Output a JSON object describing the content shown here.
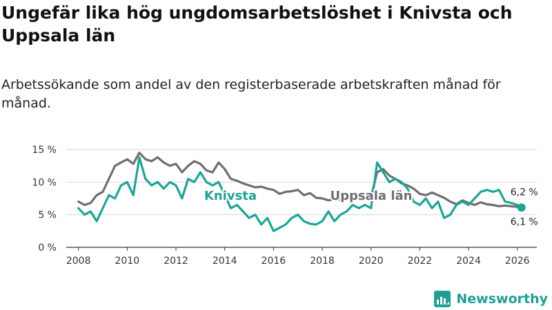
{
  "title": "Ungefär lika hög ungdomsarbetslöshet i Knivsta och Uppsala län",
  "subtitle": "Arbetssökande som andel av den registerbaserade arbetskraften månad för månad.",
  "brand": {
    "name": "Newsworthy"
  },
  "colors": {
    "knivsta": "#1fa396",
    "uppsala": "#6e6e72",
    "grid": "#d6d6d6",
    "axis": "#333333"
  },
  "chart_data": {
    "type": "line",
    "title": "Ungefär lika hög ungdomsarbetslöshet i Knivsta och Uppsala län",
    "xlabel": "",
    "ylabel": "",
    "xlim": [
      2007.5,
      2026.8
    ],
    "ylim": [
      0,
      15
    ],
    "y_ticks": [
      0,
      5,
      10,
      15
    ],
    "y_tick_labels": [
      "0 %",
      "5 %",
      "10 %",
      "15 %"
    ],
    "x_ticks": [
      2008,
      2010,
      2012,
      2014,
      2016,
      2018,
      2020,
      2022,
      2024,
      2026
    ],
    "x_tick_labels": [
      "2008",
      "2010",
      "2012",
      "2014",
      "2016",
      "2018",
      "2020",
      "2022",
      "2024",
      "2026"
    ],
    "grid": true,
    "series": [
      {
        "name": "Uppsala län",
        "label_text": "Uppsala län",
        "end_label": "6,2 %",
        "x": [
          2008.0,
          2008.25,
          2008.5,
          2008.75,
          2009.0,
          2009.25,
          2009.5,
          2009.75,
          2010.0,
          2010.25,
          2010.5,
          2010.75,
          2011.0,
          2011.25,
          2011.5,
          2011.75,
          2012.0,
          2012.25,
          2012.5,
          2012.75,
          2013.0,
          2013.25,
          2013.5,
          2013.75,
          2014.0,
          2014.25,
          2014.5,
          2014.75,
          2015.0,
          2015.25,
          2015.5,
          2015.75,
          2016.0,
          2016.25,
          2016.5,
          2016.75,
          2017.0,
          2017.25,
          2017.5,
          2017.75,
          2018.0,
          2018.25,
          2018.5,
          2018.75,
          2019.0,
          2019.25,
          2019.5,
          2019.75,
          2020.0,
          2020.25,
          2020.5,
          2020.75,
          2021.0,
          2021.25,
          2021.5,
          2021.75,
          2022.0,
          2022.25,
          2022.5,
          2022.75,
          2023.0,
          2023.25,
          2023.5,
          2023.75,
          2024.0,
          2024.25,
          2024.5,
          2024.75,
          2025.0,
          2025.25,
          2025.5,
          2025.75,
          2026.0,
          2026.17
        ],
        "values": [
          7.0,
          6.5,
          6.8,
          8.0,
          8.5,
          10.5,
          12.5,
          13.0,
          13.5,
          12.8,
          14.5,
          13.5,
          13.2,
          13.8,
          13.0,
          12.5,
          12.8,
          11.5,
          12.5,
          13.2,
          12.8,
          11.8,
          11.5,
          13.0,
          12.0,
          10.5,
          10.2,
          9.8,
          9.5,
          9.2,
          9.3,
          9.0,
          8.8,
          8.2,
          8.5,
          8.6,
          8.8,
          8.0,
          8.3,
          7.6,
          7.5,
          7.2,
          7.4,
          7.3,
          7.5,
          7.6,
          7.5,
          7.8,
          7.7,
          11.5,
          12.0,
          11.0,
          10.5,
          9.8,
          9.5,
          9.0,
          8.2,
          8.0,
          8.4,
          8.0,
          7.6,
          7.0,
          6.6,
          7.2,
          6.8,
          6.5,
          6.9,
          6.6,
          6.5,
          6.3,
          6.4,
          6.3,
          6.2,
          6.2
        ]
      },
      {
        "name": "Knivsta",
        "label_text": "Knivsta",
        "end_label": "6,1 %",
        "x": [
          2008.0,
          2008.25,
          2008.5,
          2008.75,
          2009.0,
          2009.25,
          2009.5,
          2009.75,
          2010.0,
          2010.25,
          2010.5,
          2010.75,
          2011.0,
          2011.25,
          2011.5,
          2011.75,
          2012.0,
          2012.25,
          2012.5,
          2012.75,
          2013.0,
          2013.25,
          2013.5,
          2013.75,
          2014.0,
          2014.25,
          2014.5,
          2014.75,
          2015.0,
          2015.25,
          2015.5,
          2015.75,
          2016.0,
          2016.25,
          2016.5,
          2016.75,
          2017.0,
          2017.25,
          2017.5,
          2017.75,
          2018.0,
          2018.25,
          2018.5,
          2018.75,
          2019.0,
          2019.25,
          2019.5,
          2019.75,
          2020.0,
          2020.25,
          2020.5,
          2020.75,
          2021.0,
          2021.25,
          2021.5,
          2021.75,
          2022.0,
          2022.25,
          2022.5,
          2022.75,
          2023.0,
          2023.25,
          2023.5,
          2023.75,
          2024.0,
          2024.25,
          2024.5,
          2024.75,
          2025.0,
          2025.25,
          2025.5,
          2025.75,
          2026.0,
          2026.17
        ],
        "values": [
          6.0,
          5.0,
          5.5,
          4.0,
          6.0,
          8.0,
          7.5,
          9.5,
          10.0,
          8.0,
          13.8,
          10.5,
          9.5,
          10.0,
          9.0,
          10.0,
          9.5,
          7.5,
          10.5,
          10.0,
          11.5,
          10.0,
          9.5,
          10.0,
          8.0,
          6.0,
          6.5,
          5.5,
          4.5,
          5.0,
          3.5,
          4.5,
          2.5,
          3.0,
          3.5,
          4.5,
          5.0,
          4.0,
          3.6,
          3.5,
          4.0,
          5.5,
          4.0,
          5.0,
          5.5,
          6.5,
          6.0,
          6.5,
          6.0,
          13.0,
          11.5,
          10.0,
          10.5,
          10.0,
          9.0,
          7.0,
          6.5,
          7.5,
          6.0,
          7.0,
          4.5,
          5.0,
          6.5,
          7.0,
          6.5,
          7.5,
          8.5,
          8.8,
          8.5,
          8.8,
          7.0,
          6.8,
          6.5,
          6.1
        ]
      }
    ]
  }
}
